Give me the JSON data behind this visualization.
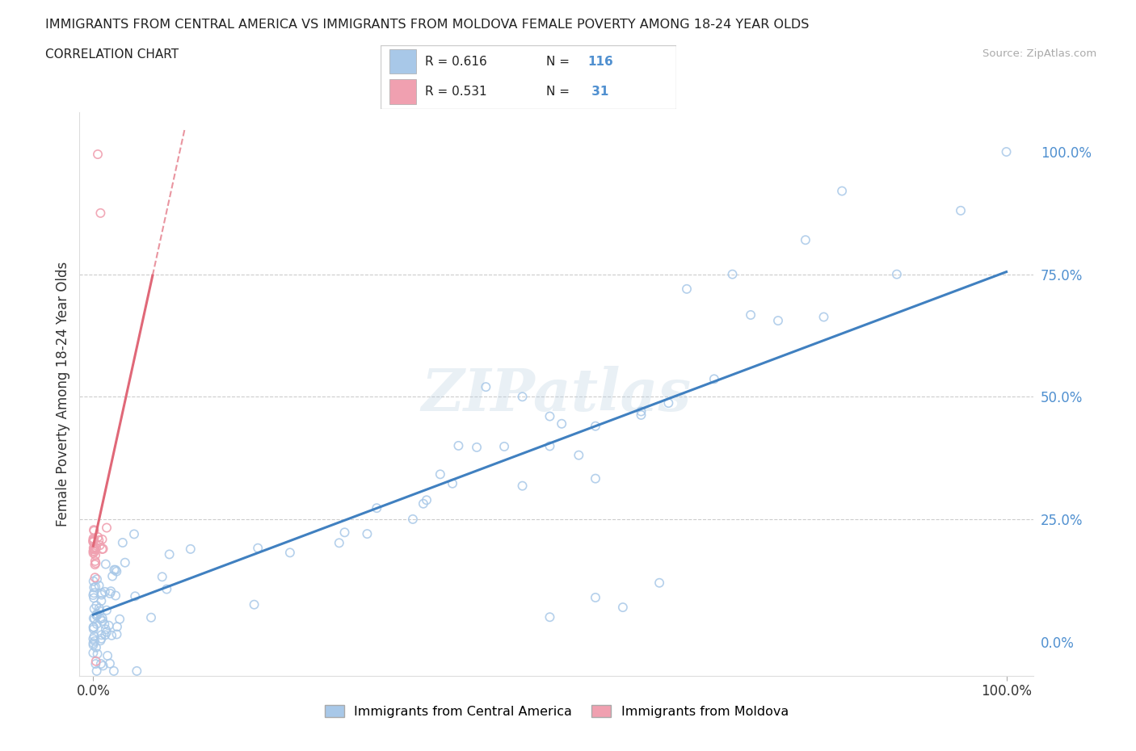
{
  "title": "IMMIGRANTS FROM CENTRAL AMERICA VS IMMIGRANTS FROM MOLDOVA FEMALE POVERTY AMONG 18-24 YEAR OLDS",
  "subtitle": "CORRELATION CHART",
  "source": "Source: ZipAtlas.com",
  "ylabel": "Female Poverty Among 18-24 Year Olds",
  "blue_R": 0.616,
  "blue_N": 116,
  "pink_R": 0.531,
  "pink_N": 31,
  "blue_color": "#a8c8e8",
  "pink_color": "#f0a0b0",
  "blue_line_color": "#4080c0",
  "pink_line_color": "#e06878",
  "blue_tick_color": "#5090d0",
  "legend_label_blue": "Immigrants from Central America",
  "legend_label_pink": "Immigrants from Moldova",
  "blue_line_b0": 0.055,
  "blue_line_b1": 0.7,
  "pink_line_b0": 0.195,
  "pink_line_b1": 8.5,
  "pink_line_xmax": 0.065,
  "ytick_vals": [
    0.0,
    0.25,
    0.5,
    0.75,
    1.0
  ],
  "ytick_labels": [
    "0.0%",
    "25.0%",
    "50.0%",
    "75.0%",
    "100.0%"
  ],
  "xtick_vals": [
    0.0,
    1.0
  ],
  "xtick_labels": [
    "0.0%",
    "100.0%"
  ],
  "xlim": [
    -0.015,
    1.03
  ],
  "ylim": [
    -0.07,
    1.08
  ]
}
